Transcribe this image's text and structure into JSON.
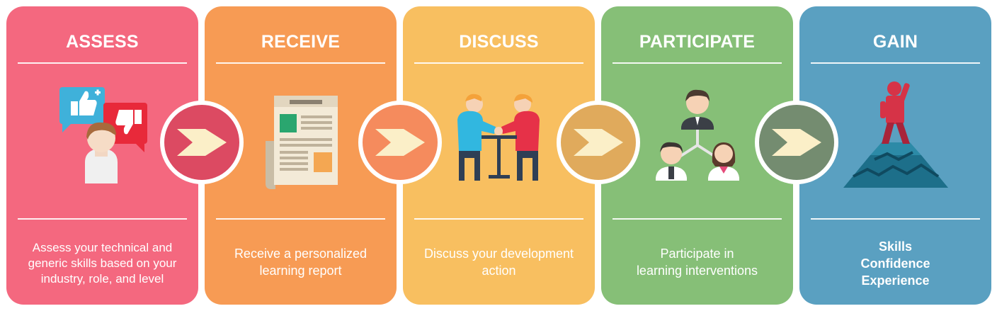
{
  "steps": [
    {
      "title": "ASSESS",
      "description_lines": [
        "Assess your technical and",
        "generic skills based on your",
        "industry, role, and level"
      ],
      "color": "#f4687f",
      "icon": "feedback-person-icon"
    },
    {
      "title": "RECEIVE",
      "description_lines": [
        "Receive a personalized",
        "learning report"
      ],
      "color": "#f79b54",
      "icon": "report-document-icon"
    },
    {
      "title": "DISCUSS",
      "description_lines": [
        "Discuss your development",
        "action"
      ],
      "color": "#f8bf60",
      "icon": "meeting-table-icon"
    },
    {
      "title": "PARTICIPATE",
      "description_lines": [
        "Participate in",
        "learning interventions"
      ],
      "color": "#86bf77",
      "icon": "team-network-icon"
    },
    {
      "title": "GAIN",
      "description_lines": [
        "Skills",
        "Confidence",
        "Experience"
      ],
      "color": "#5aa0c1",
      "icon": "summit-achievement-icon"
    }
  ],
  "connectors": [
    {
      "fill": "#dc4a62",
      "icon": "arrow-right-icon"
    },
    {
      "fill": "#f58b5d",
      "icon": "arrow-right-icon"
    },
    {
      "fill": "#e0aa5c",
      "icon": "arrow-right-icon"
    },
    {
      "fill": "#748c70",
      "icon": "arrow-right-icon"
    }
  ],
  "colors": {
    "arrow": "#fbefc8",
    "connector_border": "#ffffff"
  }
}
